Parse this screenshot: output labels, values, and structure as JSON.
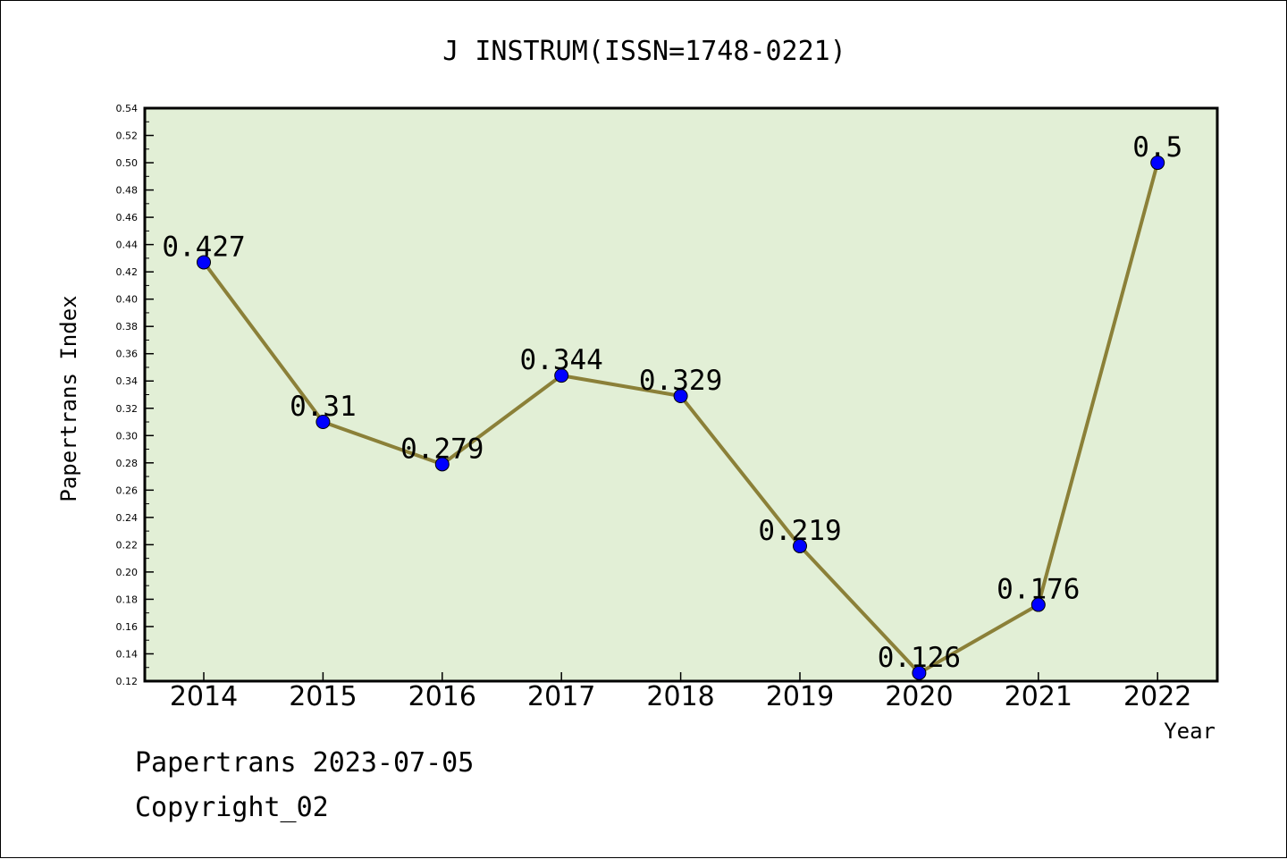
{
  "chart_data": {
    "type": "line",
    "title": "J INSTRUM(ISSN=1748-0221)",
    "xlabel": "Year",
    "ylabel": "Papertrans Index",
    "categories": [
      "2014",
      "2015",
      "2016",
      "2017",
      "2018",
      "2019",
      "2020",
      "2021",
      "2022"
    ],
    "values": [
      0.427,
      0.31,
      0.279,
      0.344,
      0.329,
      0.219,
      0.126,
      0.176,
      0.5
    ],
    "data_labels": [
      "0.427",
      "0.31",
      "0.279",
      "0.344",
      "0.329",
      "0.219",
      "0.126",
      "0.176",
      "0.5"
    ],
    "ylim": [
      0.12,
      0.54
    ],
    "yticks": [
      "0.12",
      "0.14",
      "0.16",
      "0.18",
      "0.20",
      "0.22",
      "0.24",
      "0.26",
      "0.28",
      "0.30",
      "0.32",
      "0.34",
      "0.36",
      "0.38",
      "0.40",
      "0.42",
      "0.44",
      "0.46",
      "0.48",
      "0.50",
      "0.52",
      "0.54"
    ],
    "grid": false,
    "colors": {
      "plot_background": "#e2efd6",
      "line": "#8b8038",
      "marker": "#0000ff"
    }
  },
  "footer": {
    "date_text": "Papertrans 2023-07-05",
    "copyright_text": "Copyright_02"
  }
}
